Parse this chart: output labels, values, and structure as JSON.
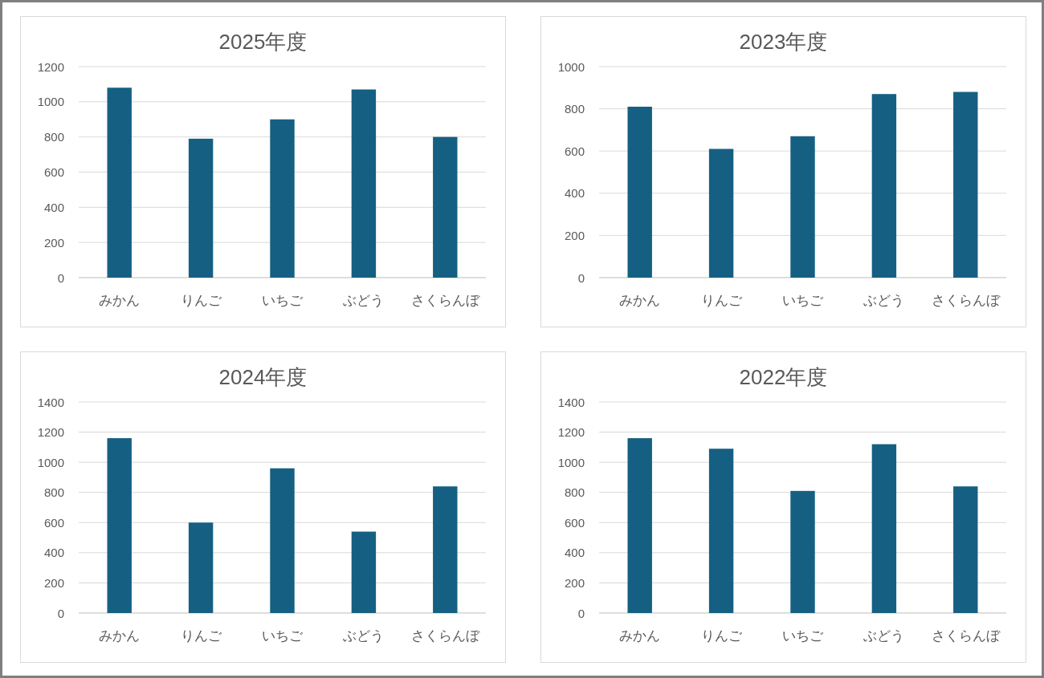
{
  "chart_data": [
    {
      "type": "bar",
      "title": "2025年度",
      "categories": [
        "みかん",
        "りんご",
        "いちご",
        "ぶどう",
        "さくらんぼ"
      ],
      "values": [
        1080,
        790,
        900,
        1070,
        800
      ],
      "color": "#156082",
      "ylim": [
        0,
        1200
      ],
      "yticks": [
        0,
        200,
        400,
        600,
        800,
        1000,
        1200
      ],
      "grid": "y"
    },
    {
      "type": "bar",
      "title": "2023年度",
      "categories": [
        "みかん",
        "りんご",
        "いちご",
        "ぶどう",
        "さくらんぼ"
      ],
      "values": [
        810,
        610,
        670,
        870,
        880
      ],
      "color": "#156082",
      "ylim": [
        0,
        1000
      ],
      "yticks": [
        0,
        200,
        400,
        600,
        800,
        1000
      ],
      "grid": "y"
    },
    {
      "type": "bar",
      "title": "2024年度",
      "categories": [
        "みかん",
        "りんご",
        "いちご",
        "ぶどう",
        "さくらんぼ"
      ],
      "values": [
        1160,
        600,
        960,
        540,
        840
      ],
      "color": "#156082",
      "ylim": [
        0,
        1400
      ],
      "yticks": [
        0,
        200,
        400,
        600,
        800,
        1000,
        1200,
        1400
      ],
      "grid": "y"
    },
    {
      "type": "bar",
      "title": "2022年度",
      "categories": [
        "みかん",
        "りんご",
        "いちご",
        "ぶどう",
        "さくらんぼ"
      ],
      "values": [
        1160,
        1090,
        810,
        1120,
        840
      ],
      "color": "#156082",
      "ylim": [
        0,
        1400
      ],
      "yticks": [
        0,
        200,
        400,
        600,
        800,
        1000,
        1200,
        1400
      ],
      "grid": "y"
    }
  ]
}
